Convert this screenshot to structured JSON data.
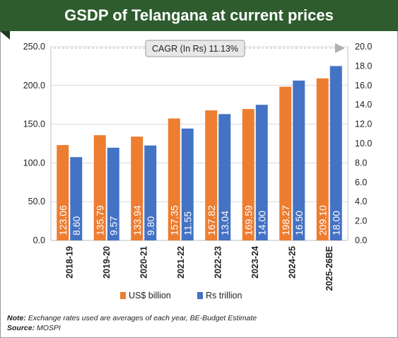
{
  "title": "GSDP of Telangana at current prices",
  "annotation": "CAGR (In Rs) 11.13%",
  "note_label": "Note:",
  "note_text": " Exchange rates used are averages of each year, BE-Budget Estimate",
  "source_label": "Source:",
  "source_text": " MOSPI",
  "colors": {
    "usd": "#ed7d31",
    "rs": "#4472c4",
    "banner": "#2e5c2e",
    "grid": "#d9d9d9"
  },
  "chart_data": {
    "type": "bar",
    "categories": [
      "2018-19",
      "2019-20",
      "2020-21",
      "2021-22",
      "2022-23",
      "2023-24",
      "2024-25",
      "2025-26BE"
    ],
    "series": [
      {
        "name": "US$ billion",
        "axis": "left",
        "values": [
          123.06,
          135.79,
          133.94,
          157.35,
          167.82,
          169.59,
          198.27,
          209.1
        ],
        "labels": [
          "123.06",
          "135.79",
          "133.94",
          "157.35",
          "167.82",
          "169.59",
          "198.27",
          "209.10"
        ]
      },
      {
        "name": "Rs trillion",
        "axis": "right",
        "values": [
          8.6,
          9.57,
          9.8,
          11.55,
          13.04,
          14.0,
          16.5,
          18.0
        ],
        "labels": [
          "8.60",
          "9.57",
          "9.80",
          "11.55",
          "13.04",
          "14.00",
          "16.50",
          "18.00"
        ]
      }
    ],
    "y_left": {
      "ylim": [
        0,
        250
      ],
      "ticks": [
        "0.0",
        "50.0",
        "100.0",
        "150.0",
        "200.0",
        "250.0"
      ]
    },
    "y_right": {
      "ylim": [
        0,
        20
      ],
      "ticks": [
        "0.0",
        "2.0",
        "4.0",
        "6.0",
        "8.0",
        "10.0",
        "12.0",
        "14.0",
        "16.0",
        "18.0",
        "20.0"
      ]
    },
    "grid": true,
    "legend_position": "bottom"
  }
}
